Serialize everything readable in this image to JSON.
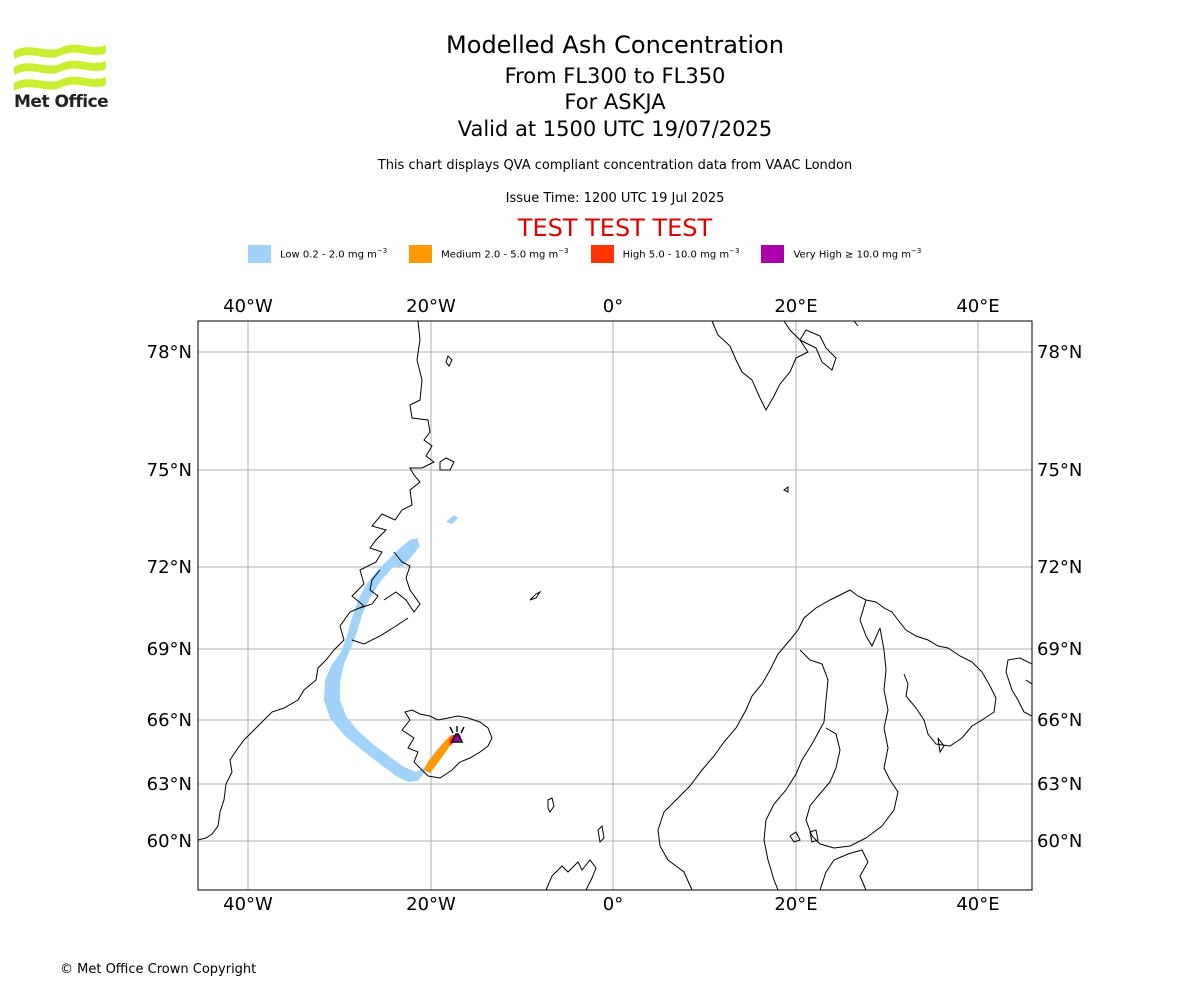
{
  "logo": {
    "text": "Met Office",
    "colors": [
      "#c8f030",
      "#b6e61e"
    ]
  },
  "title": {
    "main": "Modelled Ash Concentration",
    "levels": "From FL300 to FL350",
    "volcano": "For ASKJA",
    "valid": "Valid at 1500 UTC 19/07/2025",
    "note": "This chart displays QVA compliant concentration data from VAAC London",
    "issue": "Issue Time: 1200 UTC 19 Jul 2025",
    "test": "TEST TEST TEST"
  },
  "legend": [
    {
      "label": "Low 0.2 - 2.0 mg m",
      "sup": "−3",
      "color": "#a0d2fa"
    },
    {
      "label": "Medium 2.0 - 5.0 mg m",
      "sup": "−3",
      "color": "#ff9900"
    },
    {
      "label": "High 5.0 - 10.0 mg m",
      "sup": "−3",
      "color": "#ff3300"
    },
    {
      "label": "Very High  ≥  10.0 mg m",
      "sup": "−3",
      "color": "#aa00aa"
    }
  ],
  "axes": {
    "lon_labels": [
      "40°W",
      "20°W",
      "0°",
      "20°E",
      "40°E"
    ],
    "lat_labels": [
      "78°N",
      "75°N",
      "72°N",
      "69°N",
      "66°N",
      "63°N",
      "60°N"
    ],
    "grid": true,
    "gridline_color": "#b0b0b0"
  },
  "volcano": {
    "name": "ASKJA",
    "lat": 65.03,
    "lon": -16.75,
    "symbol": "volcano-triangle"
  },
  "copyright": "© Met Office Crown Copyright"
}
